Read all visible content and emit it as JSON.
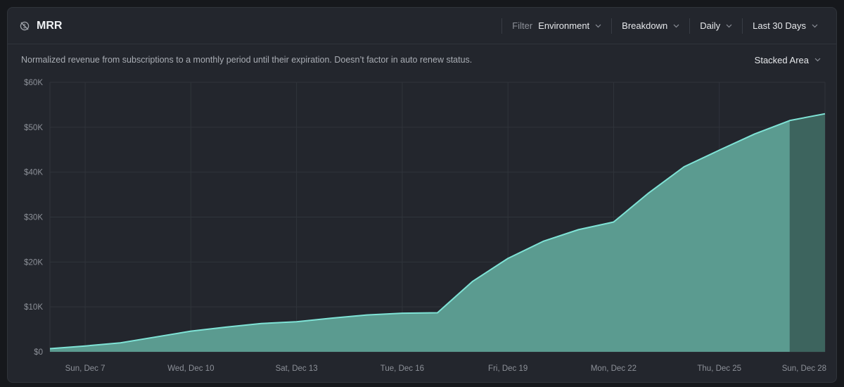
{
  "header": {
    "title": "MRR",
    "title_icon": "currency-off-icon",
    "filter_label": "Filter",
    "filter_value": "Environment",
    "breakdown_label": "Breakdown",
    "interval_label": "Daily",
    "range_label": "Last 30 Days"
  },
  "description": "Normalized revenue from subscriptions to a monthly period until their expiration. Doesn’t factor in auto renew status.",
  "chart_type_label": "Stacked Area",
  "colors": {
    "line": "#7fe3d6",
    "area": "#5b9b90",
    "area_incomplete": "#3d645e",
    "grid": "#30343b",
    "background": "#23262d"
  },
  "chart_data": {
    "type": "area",
    "title": "MRR",
    "xlabel": "",
    "ylabel": "",
    "x": [
      "Dec 6",
      "Dec 7",
      "Dec 8",
      "Dec 9",
      "Dec 10",
      "Dec 11",
      "Dec 12",
      "Dec 13",
      "Dec 14",
      "Dec 15",
      "Dec 16",
      "Dec 17",
      "Dec 18",
      "Dec 19",
      "Dec 20",
      "Dec 21",
      "Dec 22",
      "Dec 23",
      "Dec 24",
      "Dec 25",
      "Dec 26",
      "Dec 27",
      "Dec 28"
    ],
    "x_tick_labels": [
      {
        "index": 1,
        "label": "Sun, Dec 7"
      },
      {
        "index": 4,
        "label": "Wed, Dec 10"
      },
      {
        "index": 7,
        "label": "Sat, Dec 13"
      },
      {
        "index": 10,
        "label": "Tue, Dec 16"
      },
      {
        "index": 13,
        "label": "Fri, Dec 19"
      },
      {
        "index": 16,
        "label": "Mon, Dec 22"
      },
      {
        "index": 19,
        "label": "Thu, Dec 25"
      },
      {
        "index": 22,
        "label": "Sun, Dec 28"
      }
    ],
    "series": [
      {
        "values": [
          700,
          1300,
          2000,
          3300,
          4600,
          5500,
          6300,
          6700,
          7500,
          8200,
          8600,
          8700,
          15700,
          20800,
          24600,
          27200,
          28900,
          35400,
          41200,
          44900,
          48500,
          51500,
          53000
        ]
      }
    ],
    "incomplete_from_index": 21,
    "ylim": [
      0,
      60000
    ],
    "y_ticks": [
      0,
      10000,
      20000,
      30000,
      40000,
      50000,
      60000
    ],
    "y_tick_labels": [
      "$0",
      "$10K",
      "$20K",
      "$30K",
      "$40K",
      "$50K",
      "$60K"
    ],
    "grid": true,
    "legend": "none"
  }
}
